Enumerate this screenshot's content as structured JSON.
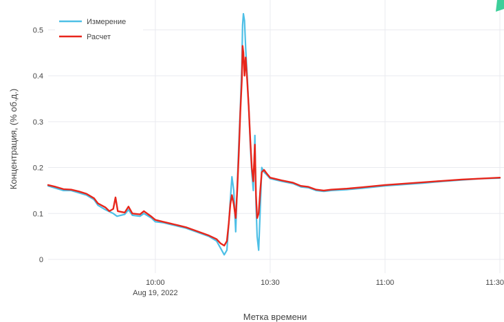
{
  "chart_data": {
    "type": "line",
    "title": "",
    "xlabel": "Метка времени",
    "ylabel": "Концентрация, (% об.д.)",
    "x_ticks": [
      {
        "time": "10:00",
        "sub": "Aug 19, 2022"
      },
      {
        "time": "10:30",
        "sub": ""
      },
      {
        "time": "11:00",
        "sub": ""
      },
      {
        "time": "11:30",
        "sub": ""
      }
    ],
    "x_range": [
      "09:32",
      "11:30"
    ],
    "y_ticks": [
      0,
      0.1,
      0.2,
      0.3,
      0.4,
      0.5
    ],
    "y_range": [
      -0.03,
      0.565
    ],
    "grid": true,
    "legend_position": "top-left",
    "colors": {
      "measurement": "#4dbfe6",
      "calculation": "#e8261b",
      "accent": "#3ccf9a"
    },
    "series": [
      {
        "name": "Измерение",
        "points": [
          [
            "09:32",
            0.16
          ],
          [
            "09:34",
            0.155
          ],
          [
            "09:36",
            0.15
          ],
          [
            "09:38",
            0.15
          ],
          [
            "09:40",
            0.145
          ],
          [
            "09:42",
            0.14
          ],
          [
            "09:44",
            0.13
          ],
          [
            "09:45",
            0.118
          ],
          [
            "09:47",
            0.108
          ],
          [
            "09:49",
            0.1
          ],
          [
            "09:50",
            0.094
          ],
          [
            "09:52",
            0.098
          ],
          [
            "09:53",
            0.108
          ],
          [
            "09:54",
            0.096
          ],
          [
            "09:56",
            0.094
          ],
          [
            "09:57",
            0.1
          ],
          [
            "09:59",
            0.09
          ],
          [
            "10:00",
            0.082
          ],
          [
            "10:02",
            0.08
          ],
          [
            "10:04",
            0.076
          ],
          [
            "10:06",
            0.072
          ],
          [
            "10:08",
            0.068
          ],
          [
            "10:10",
            0.062
          ],
          [
            "10:12",
            0.056
          ],
          [
            "10:14",
            0.05
          ],
          [
            "10:16",
            0.04
          ],
          [
            "10:17",
            0.025
          ],
          [
            "10:18",
            0.01
          ],
          [
            "10:18.7",
            0.02
          ],
          [
            "10:19.2",
            0.08
          ],
          [
            "10:19.6",
            0.13
          ],
          [
            "10:20",
            0.18
          ],
          [
            "10:20.5",
            0.15
          ],
          [
            "10:21",
            0.06
          ],
          [
            "10:21.4",
            0.16
          ],
          [
            "10:21.8",
            0.25
          ],
          [
            "10:22.2",
            0.33
          ],
          [
            "10:22.6",
            0.42
          ],
          [
            "10:22.8",
            0.51
          ],
          [
            "10:23",
            0.535
          ],
          [
            "10:23.3",
            0.52
          ],
          [
            "10:23.6",
            0.46
          ],
          [
            "10:24",
            0.4
          ],
          [
            "10:24.4",
            0.33
          ],
          [
            "10:24.8",
            0.25
          ],
          [
            "10:25.2",
            0.19
          ],
          [
            "10:25.6",
            0.15
          ],
          [
            "10:26",
            0.27
          ],
          [
            "10:26.3",
            0.12
          ],
          [
            "10:26.6",
            0.05
          ],
          [
            "10:27",
            0.02
          ],
          [
            "10:27.4",
            0.11
          ],
          [
            "10:27.8",
            0.2
          ],
          [
            "10:28.4",
            0.19
          ],
          [
            "10:29",
            0.185
          ],
          [
            "10:30",
            0.176
          ],
          [
            "10:33",
            0.17
          ],
          [
            "10:36",
            0.165
          ],
          [
            "10:38",
            0.158
          ],
          [
            "10:40",
            0.156
          ],
          [
            "10:42",
            0.15
          ],
          [
            "10:44",
            0.148
          ],
          [
            "10:46",
            0.15
          ],
          [
            "10:50",
            0.152
          ],
          [
            "10:54",
            0.155
          ],
          [
            "11:00",
            0.16
          ],
          [
            "11:05",
            0.163
          ],
          [
            "11:10",
            0.166
          ],
          [
            "11:15",
            0.17
          ],
          [
            "11:20",
            0.173
          ],
          [
            "11:25",
            0.176
          ],
          [
            "11:30",
            0.177
          ]
        ]
      },
      {
        "name": "Расчет",
        "points": [
          [
            "09:32",
            0.162
          ],
          [
            "09:34",
            0.158
          ],
          [
            "09:36",
            0.153
          ],
          [
            "09:38",
            0.152
          ],
          [
            "09:40",
            0.148
          ],
          [
            "09:42",
            0.143
          ],
          [
            "09:44",
            0.133
          ],
          [
            "09:45",
            0.122
          ],
          [
            "09:47",
            0.113
          ],
          [
            "09:48",
            0.105
          ],
          [
            "09:49",
            0.11
          ],
          [
            "09:49.6",
            0.135
          ],
          [
            "09:50.2",
            0.105
          ],
          [
            "09:52",
            0.102
          ],
          [
            "09:53",
            0.115
          ],
          [
            "09:54",
            0.1
          ],
          [
            "09:56",
            0.098
          ],
          [
            "09:57",
            0.105
          ],
          [
            "09:59",
            0.093
          ],
          [
            "10:00",
            0.086
          ],
          [
            "10:02",
            0.082
          ],
          [
            "10:04",
            0.078
          ],
          [
            "10:06",
            0.074
          ],
          [
            "10:08",
            0.07
          ],
          [
            "10:10",
            0.064
          ],
          [
            "10:12",
            0.058
          ],
          [
            "10:14",
            0.052
          ],
          [
            "10:16",
            0.044
          ],
          [
            "10:17",
            0.035
          ],
          [
            "10:18",
            0.03
          ],
          [
            "10:18.7",
            0.04
          ],
          [
            "10:19.2",
            0.08
          ],
          [
            "10:19.6",
            0.12
          ],
          [
            "10:20",
            0.14
          ],
          [
            "10:20.5",
            0.12
          ],
          [
            "10:21",
            0.09
          ],
          [
            "10:21.4",
            0.15
          ],
          [
            "10:21.8",
            0.23
          ],
          [
            "10:22.2",
            0.32
          ],
          [
            "10:22.6",
            0.39
          ],
          [
            "10:22.8",
            0.465
          ],
          [
            "10:23",
            0.45
          ],
          [
            "10:23.3",
            0.4
          ],
          [
            "10:23.6",
            0.44
          ],
          [
            "10:24",
            0.39
          ],
          [
            "10:24.4",
            0.33
          ],
          [
            "10:24.8",
            0.26
          ],
          [
            "10:25.2",
            0.2
          ],
          [
            "10:25.6",
            0.17
          ],
          [
            "10:26",
            0.25
          ],
          [
            "10:26.3",
            0.14
          ],
          [
            "10:26.6",
            0.09
          ],
          [
            "10:27",
            0.1
          ],
          [
            "10:27.4",
            0.15
          ],
          [
            "10:27.8",
            0.19
          ],
          [
            "10:28.4",
            0.195
          ],
          [
            "10:29",
            0.188
          ],
          [
            "10:30",
            0.178
          ],
          [
            "10:33",
            0.172
          ],
          [
            "10:36",
            0.167
          ],
          [
            "10:38",
            0.16
          ],
          [
            "10:40",
            0.158
          ],
          [
            "10:42",
            0.152
          ],
          [
            "10:44",
            0.15
          ],
          [
            "10:46",
            0.152
          ],
          [
            "10:50",
            0.154
          ],
          [
            "10:54",
            0.157
          ],
          [
            "11:00",
            0.162
          ],
          [
            "11:05",
            0.165
          ],
          [
            "11:10",
            0.168
          ],
          [
            "11:15",
            0.171
          ],
          [
            "11:20",
            0.174
          ],
          [
            "11:25",
            0.176
          ],
          [
            "11:30",
            0.178
          ]
        ]
      }
    ]
  }
}
